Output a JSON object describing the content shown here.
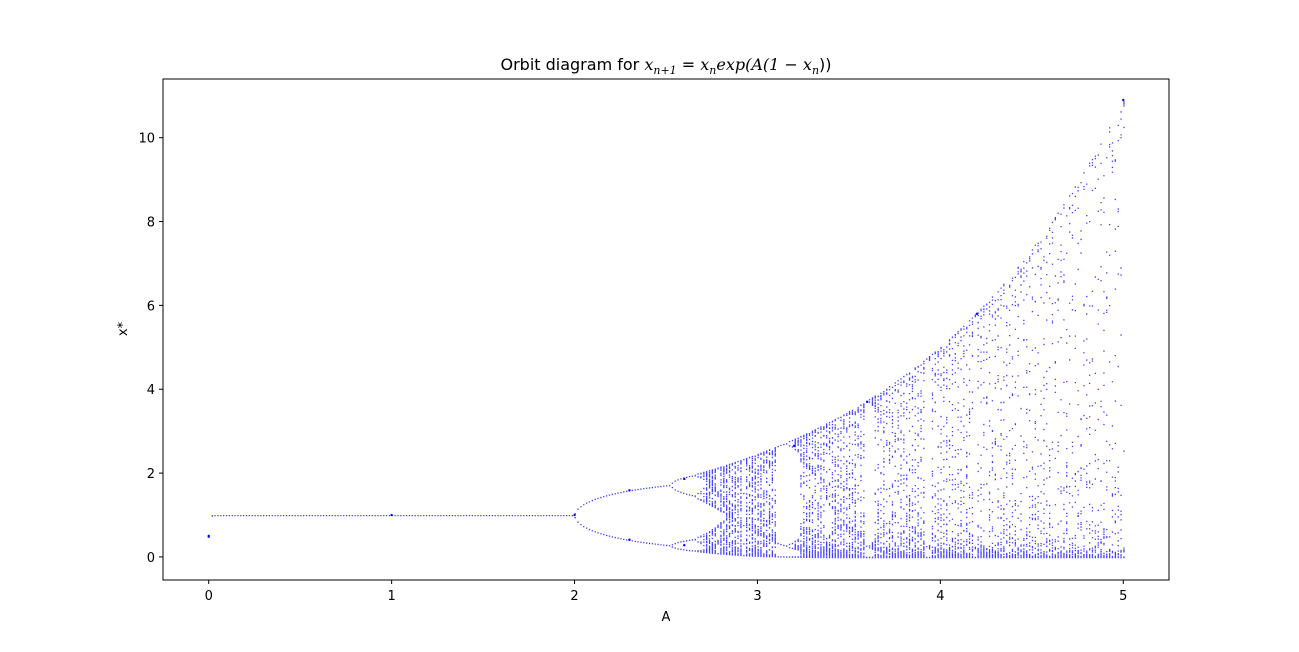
{
  "chart_data": {
    "type": "scatter",
    "title_prefix": "Orbit diagram for ",
    "title_math": {
      "x1": "x",
      "sub1": "n+1",
      "eq": " = ",
      "x2": "x",
      "sub2": "n",
      "exp": "exp(A(1 − ",
      "x3": "x",
      "sub3": "n",
      "close": "))"
    },
    "xlabel": "A",
    "ylabel": "x*",
    "xlim": [
      -0.25,
      5.25
    ],
    "ylim": [
      -0.55,
      11.4
    ],
    "xticks": [
      0,
      1,
      2,
      3,
      4,
      5
    ],
    "yticks": [
      0,
      2,
      4,
      6,
      8,
      10
    ],
    "grid": false,
    "point_color": "#0000ff",
    "series": [
      {
        "map": "x_{n+1} = x_n exp(A(1 - x_n))",
        "A_range": [
          0,
          5
        ]
      }
    ],
    "sample_points": [
      {
        "A": 0.0,
        "x": 0.5
      },
      {
        "A": 1.0,
        "x": 1.0
      },
      {
        "A": 2.0,
        "x": 1.0
      },
      {
        "A": 2.3,
        "x": 0.41
      },
      {
        "A": 2.3,
        "x": 1.59
      },
      {
        "A": 2.6,
        "x": 0.28
      },
      {
        "A": 2.6,
        "x": 1.86
      },
      {
        "A": 3.2,
        "x": 2.65
      },
      {
        "A": 3.6,
        "x": 3.7
      },
      {
        "A": 4.2,
        "x": 5.8
      },
      {
        "A": 5.0,
        "x": 10.9
      }
    ]
  }
}
